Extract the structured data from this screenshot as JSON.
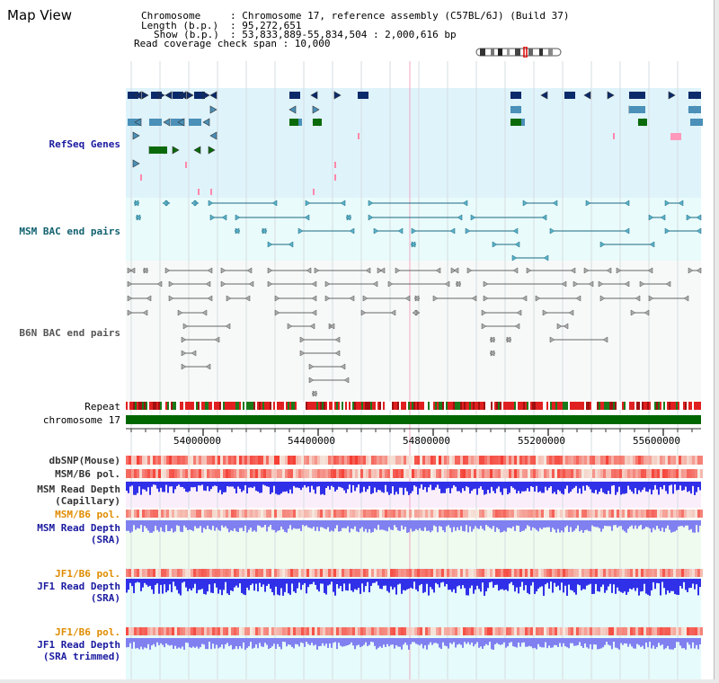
{
  "header": {
    "title": "Map View",
    "chromosome_label": "Chromosome",
    "chromosome_value": ": Chromosome 17, reference assembly (C57BL/6J) (Build 37)",
    "length_label": "Length (b.p.)",
    "length_value": ": 95,272,651",
    "show_label": "Show (b.p.)",
    "show_value": ": 53,833,889-55,834,504 : 2,000,616 bp",
    "read_coverage": "Read coverage check span : 10,000"
  },
  "tracks": {
    "refseq": "RefSeq Genes",
    "msm_bac": "MSM BAC end pairs",
    "b6n_bac": "B6N BAC end pairs",
    "repeat": "Repeat",
    "chromosome": "chromosome 17",
    "dbsnp": "dbSNP(Mouse)",
    "msm_b6_pol": "MSM/B6 pol.",
    "msm_read_depth_cap_1": "MSM Read Depth",
    "msm_read_depth_cap_2": "(Capillary)",
    "msm_b6_pol_2": "MSM/B6 pol.",
    "msm_read_depth_sra_1": "MSM Read Depth",
    "msm_read_depth_sra_2": "(SRA)",
    "jf1_b6_pol": "JF1/B6 pol.",
    "jf1_read_depth_sra_1": "JF1 Read Depth",
    "jf1_read_depth_sra_2": "(SRA)",
    "jf1_b6_pol_2": "JF1/B6 pol.",
    "jf1_read_depth_trim_1": "JF1 Read Depth",
    "jf1_read_depth_trim_2": "(SRA trimmed)"
  },
  "ruler": {
    "ticks": [
      "54000000",
      "54400000",
      "54800000",
      "55200000",
      "55600000"
    ]
  },
  "colors": {
    "refseq_bg": "#dff3fb",
    "bac_bg": "#e9fbfb",
    "b6n_bg": "#f7f9f9",
    "capillary_bg": "#fbeefb",
    "sra_bg": "#eefbee",
    "jf1_bg": "#e6fbfb",
    "label_blue": "#1a1aa0",
    "label_teal": "#106070",
    "label_orange": "#e08c00",
    "gene_navy": "#0a2a6a",
    "gene_steel": "#4a90b8",
    "gene_green": "#0a6a0a",
    "chromosome_green": "#006600",
    "depth_blue": "#3030e8",
    "depth_light_blue": "#8080f0"
  }
}
